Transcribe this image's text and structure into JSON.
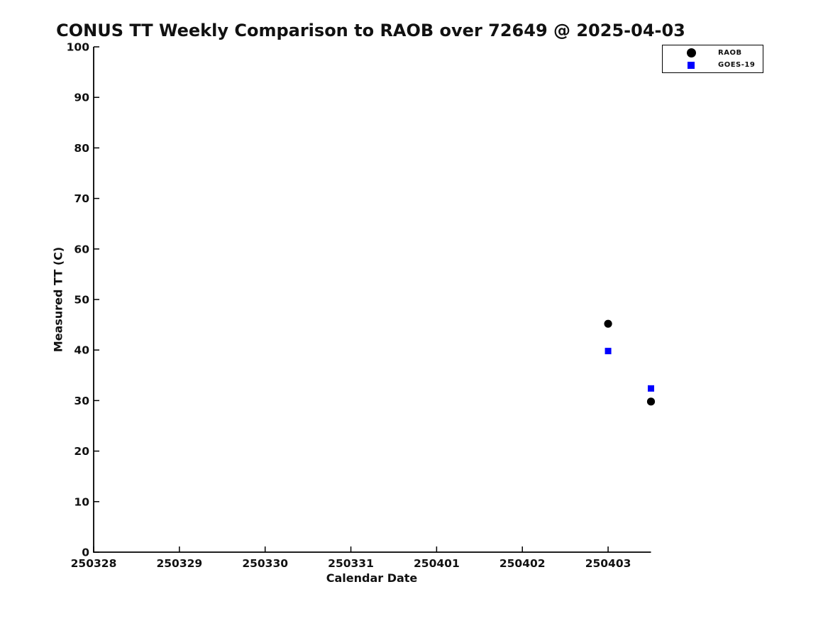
{
  "chart_data": {
    "type": "scatter",
    "title": "CONUS TT Weekly Comparison to RAOB over 72649 @ 2025-04-03",
    "xlabel": "Calendar Date",
    "ylabel": "Measured TT (C)",
    "x_tick_labels": [
      "250328",
      "250329",
      "250330",
      "250331",
      "250401",
      "250402",
      "250403"
    ],
    "x_tick_positions": [
      0,
      1,
      2,
      3,
      4,
      5,
      6
    ],
    "xlim": [
      0,
      6.5
    ],
    "y_ticks": [
      0,
      10,
      20,
      30,
      40,
      50,
      60,
      70,
      80,
      90,
      100
    ],
    "ylim": [
      0,
      100
    ],
    "grid": false,
    "legend_position": "upper-right-outside",
    "text_color": "#111111",
    "axis_color": "#000000",
    "series": [
      {
        "name": "RAOB",
        "marker": "circle",
        "color": "#000000",
        "x": [
          6.0,
          6.5
        ],
        "y": [
          45.2,
          29.8
        ]
      },
      {
        "name": "GOES-19",
        "marker": "square",
        "color": "#0000ff",
        "x": [
          6.0,
          6.5
        ],
        "y": [
          39.8,
          32.4
        ]
      }
    ]
  }
}
